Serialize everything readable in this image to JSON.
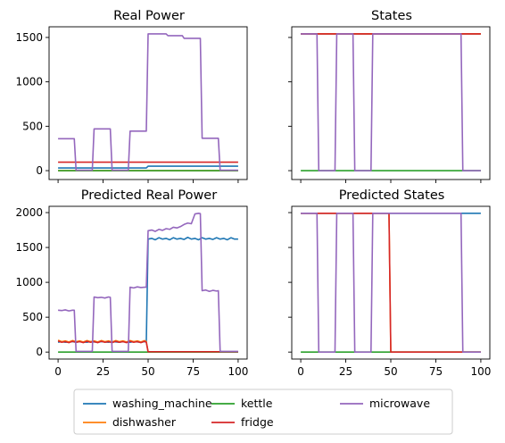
{
  "legend": [
    {
      "name": "washing_machine",
      "color": "#1f77b4"
    },
    {
      "name": "dishwasher",
      "color": "#ff7f0e"
    },
    {
      "name": "kettle",
      "color": "#2ca02c"
    },
    {
      "name": "fridge",
      "color": "#d62728"
    },
    {
      "name": "microwave",
      "color": "#9467bd"
    }
  ],
  "chart_data": [
    {
      "type": "line",
      "title": "Real Power",
      "xlim": [
        -5,
        105
      ],
      "ylim": [
        -100,
        1620
      ],
      "xticks": [
        0,
        25,
        50,
        75,
        100
      ],
      "show_xtick_labels": false,
      "yticks": [
        0,
        500,
        1000,
        1500
      ],
      "show_ytick_labels": true,
      "series": [
        {
          "name": "washing_machine",
          "color": "#1f77b4",
          "points": [
            [
              0,
              30
            ],
            [
              49,
              30
            ],
            [
              50,
              50
            ],
            [
              100,
              50
            ]
          ]
        },
        {
          "name": "dishwasher",
          "color": "#ff7f0e",
          "points": [
            [
              0,
              0
            ],
            [
              100,
              0
            ]
          ]
        },
        {
          "name": "kettle",
          "color": "#2ca02c",
          "points": [
            [
              0,
              0
            ],
            [
              100,
              0
            ]
          ]
        },
        {
          "name": "fridge",
          "color": "#d62728",
          "points": [
            [
              0,
              95
            ],
            [
              100,
              95
            ]
          ]
        },
        {
          "name": "microwave",
          "color": "#9467bd",
          "points": [
            [
              0,
              360
            ],
            [
              9,
              360
            ],
            [
              10,
              5
            ],
            [
              19,
              5
            ],
            [
              20,
              470
            ],
            [
              29,
              470
            ],
            [
              30,
              5
            ],
            [
              39,
              5
            ],
            [
              40,
              445
            ],
            [
              49,
              445
            ],
            [
              50,
              1540
            ],
            [
              60,
              1540
            ],
            [
              61,
              1520
            ],
            [
              69,
              1520
            ],
            [
              70,
              1490
            ],
            [
              79,
              1490
            ],
            [
              80,
              365
            ],
            [
              89,
              365
            ],
            [
              90,
              5
            ],
            [
              100,
              5
            ]
          ]
        }
      ]
    },
    {
      "type": "line",
      "title": "States",
      "xlim": [
        -5,
        105
      ],
      "ylim": [
        -100,
        1620
      ],
      "xticks": [
        0,
        25,
        50,
        75,
        100
      ],
      "show_xtick_labels": false,
      "yticks": [
        0,
        500,
        1000,
        1500
      ],
      "show_ytick_labels": false,
      "series": [
        {
          "name": "washing_machine",
          "color": "#1f77b4",
          "points": [
            [
              0,
              1540
            ],
            [
              100,
              1540
            ]
          ]
        },
        {
          "name": "dishwasher",
          "color": "#ff7f0e",
          "points": [
            [
              0,
              1540
            ],
            [
              100,
              1540
            ]
          ]
        },
        {
          "name": "kettle",
          "color": "#2ca02c",
          "points": [
            [
              0,
              0
            ],
            [
              100,
              0
            ]
          ]
        },
        {
          "name": "fridge",
          "color": "#d62728",
          "points": [
            [
              0,
              1540
            ],
            [
              100,
              1540
            ]
          ]
        },
        {
          "name": "microwave",
          "color": "#9467bd",
          "points": [
            [
              0,
              1540
            ],
            [
              9,
              1540
            ],
            [
              10,
              0
            ],
            [
              19,
              0
            ],
            [
              20,
              1540
            ],
            [
              29,
              1540
            ],
            [
              30,
              0
            ],
            [
              39,
              0
            ],
            [
              40,
              1540
            ],
            [
              89,
              1540
            ],
            [
              90,
              0
            ],
            [
              100,
              0
            ]
          ]
        }
      ]
    },
    {
      "type": "line",
      "title": "Predicted Real Power",
      "xlim": [
        -5,
        105
      ],
      "ylim": [
        -100,
        2090
      ],
      "xticks": [
        0,
        25,
        50,
        75,
        100
      ],
      "show_xtick_labels": true,
      "yticks": [
        0,
        500,
        1000,
        1500,
        2000
      ],
      "show_ytick_labels": true,
      "series": [
        {
          "name": "washing_machine",
          "color": "#1f77b4",
          "points": [
            [
              0,
              140
            ],
            [
              2,
              150
            ],
            [
              4,
              140
            ],
            [
              6,
              145
            ],
            [
              8,
              150
            ],
            [
              10,
              140
            ],
            [
              12,
              150
            ],
            [
              14,
              145
            ],
            [
              16,
              140
            ],
            [
              18,
              150
            ],
            [
              20,
              145
            ],
            [
              22,
              140
            ],
            [
              24,
              150
            ],
            [
              26,
              145
            ],
            [
              28,
              140
            ],
            [
              30,
              150
            ],
            [
              32,
              145
            ],
            [
              34,
              140
            ],
            [
              36,
              150
            ],
            [
              38,
              145
            ],
            [
              40,
              140
            ],
            [
              42,
              150
            ],
            [
              44,
              145
            ],
            [
              46,
              140
            ],
            [
              48,
              150
            ],
            [
              49,
              145
            ],
            [
              50,
              1620
            ],
            [
              52,
              1630
            ],
            [
              54,
              1610
            ],
            [
              56,
              1640
            ],
            [
              58,
              1620
            ],
            [
              60,
              1630
            ],
            [
              62,
              1610
            ],
            [
              64,
              1640
            ],
            [
              66,
              1620
            ],
            [
              68,
              1630
            ],
            [
              70,
              1615
            ],
            [
              72,
              1645
            ],
            [
              74,
              1620
            ],
            [
              76,
              1630
            ],
            [
              78,
              1610
            ],
            [
              80,
              1640
            ],
            [
              82,
              1620
            ],
            [
              84,
              1630
            ],
            [
              86,
              1615
            ],
            [
              88,
              1640
            ],
            [
              90,
              1620
            ],
            [
              92,
              1630
            ],
            [
              94,
              1610
            ],
            [
              96,
              1640
            ],
            [
              98,
              1620
            ],
            [
              100,
              1620
            ]
          ]
        },
        {
          "name": "dishwasher",
          "color": "#ff7f0e",
          "points": [
            [
              0,
              170
            ],
            [
              2,
              150
            ],
            [
              4,
              160
            ],
            [
              6,
              145
            ],
            [
              8,
              165
            ],
            [
              10,
              150
            ],
            [
              12,
              160
            ],
            [
              14,
              145
            ],
            [
              16,
              165
            ],
            [
              18,
              150
            ],
            [
              20,
              160
            ],
            [
              22,
              145
            ],
            [
              24,
              165
            ],
            [
              26,
              150
            ],
            [
              28,
              160
            ],
            [
              30,
              145
            ],
            [
              32,
              165
            ],
            [
              34,
              150
            ],
            [
              36,
              160
            ],
            [
              38,
              145
            ],
            [
              40,
              165
            ],
            [
              42,
              150
            ],
            [
              44,
              160
            ],
            [
              46,
              145
            ],
            [
              48,
              165
            ],
            [
              49,
              150
            ],
            [
              50,
              0
            ],
            [
              100,
              0
            ]
          ]
        },
        {
          "name": "kettle",
          "color": "#2ca02c",
          "points": [
            [
              0,
              0
            ],
            [
              100,
              0
            ]
          ]
        },
        {
          "name": "fridge",
          "color": "#d62728",
          "points": [
            [
              0,
              160
            ],
            [
              2,
              140
            ],
            [
              4,
              150
            ],
            [
              6,
              135
            ],
            [
              8,
              155
            ],
            [
              10,
              140
            ],
            [
              12,
              150
            ],
            [
              14,
              135
            ],
            [
              16,
              155
            ],
            [
              18,
              140
            ],
            [
              20,
              150
            ],
            [
              22,
              135
            ],
            [
              24,
              155
            ],
            [
              26,
              140
            ],
            [
              28,
              150
            ],
            [
              30,
              135
            ],
            [
              32,
              155
            ],
            [
              34,
              140
            ],
            [
              36,
              150
            ],
            [
              38,
              135
            ],
            [
              40,
              155
            ],
            [
              42,
              140
            ],
            [
              44,
              150
            ],
            [
              46,
              135
            ],
            [
              48,
              155
            ],
            [
              49,
              140
            ],
            [
              50,
              5
            ],
            [
              100,
              5
            ]
          ]
        },
        {
          "name": "microwave",
          "color": "#9467bd",
          "points": [
            [
              0,
              600
            ],
            [
              2,
              595
            ],
            [
              4,
              605
            ],
            [
              6,
              590
            ],
            [
              8,
              600
            ],
            [
              9,
              600
            ],
            [
              10,
              10
            ],
            [
              19,
              10
            ],
            [
              20,
              790
            ],
            [
              22,
              780
            ],
            [
              24,
              785
            ],
            [
              26,
              775
            ],
            [
              28,
              790
            ],
            [
              29,
              785
            ],
            [
              30,
              10
            ],
            [
              39,
              10
            ],
            [
              40,
              930
            ],
            [
              42,
              920
            ],
            [
              44,
              935
            ],
            [
              46,
              925
            ],
            [
              48,
              930
            ],
            [
              49,
              930
            ],
            [
              50,
              1740
            ],
            [
              52,
              1750
            ],
            [
              54,
              1730
            ],
            [
              56,
              1760
            ],
            [
              58,
              1745
            ],
            [
              60,
              1770
            ],
            [
              62,
              1760
            ],
            [
              64,
              1790
            ],
            [
              66,
              1780
            ],
            [
              68,
              1800
            ],
            [
              70,
              1830
            ],
            [
              72,
              1850
            ],
            [
              74,
              1840
            ],
            [
              76,
              1980
            ],
            [
              78,
              1990
            ],
            [
              79,
              1985
            ],
            [
              80,
              880
            ],
            [
              82,
              890
            ],
            [
              84,
              870
            ],
            [
              86,
              885
            ],
            [
              88,
              875
            ],
            [
              89,
              880
            ],
            [
              90,
              10
            ],
            [
              100,
              10
            ]
          ]
        }
      ]
    },
    {
      "type": "line",
      "title": "Predicted States",
      "xlim": [
        -5,
        105
      ],
      "ylim": [
        -100,
        2090
      ],
      "xticks": [
        0,
        25,
        50,
        75,
        100
      ],
      "show_xtick_labels": true,
      "yticks": [
        0,
        500,
        1000,
        1500,
        2000
      ],
      "show_ytick_labels": false,
      "series": [
        {
          "name": "washing_machine",
          "color": "#1f77b4",
          "points": [
            [
              0,
              1990
            ],
            [
              100,
              1990
            ]
          ]
        },
        {
          "name": "dishwasher",
          "color": "#ff7f0e",
          "points": [
            [
              0,
              1990
            ],
            [
              49,
              1990
            ],
            [
              50,
              0
            ],
            [
              100,
              0
            ]
          ]
        },
        {
          "name": "kettle",
          "color": "#2ca02c",
          "points": [
            [
              0,
              0
            ],
            [
              100,
              0
            ]
          ]
        },
        {
          "name": "fridge",
          "color": "#d62728",
          "points": [
            [
              0,
              1990
            ],
            [
              49,
              1990
            ],
            [
              50,
              0
            ],
            [
              100,
              0
            ]
          ]
        },
        {
          "name": "microwave",
          "color": "#9467bd",
          "points": [
            [
              0,
              1990
            ],
            [
              9,
              1990
            ],
            [
              10,
              0
            ],
            [
              19,
              0
            ],
            [
              20,
              1990
            ],
            [
              29,
              1990
            ],
            [
              30,
              0
            ],
            [
              39,
              0
            ],
            [
              40,
              1990
            ],
            [
              89,
              1990
            ],
            [
              90,
              0
            ],
            [
              100,
              0
            ]
          ]
        }
      ]
    }
  ]
}
